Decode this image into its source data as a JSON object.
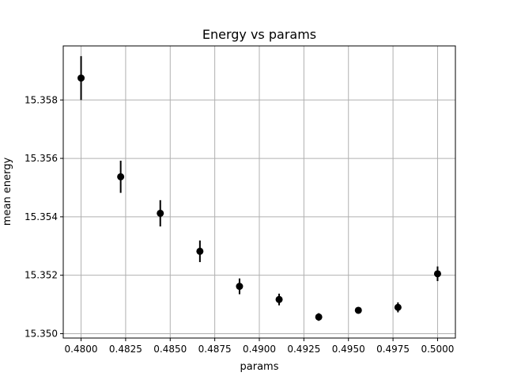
{
  "chart_data": {
    "type": "scatter",
    "title": "Energy vs params",
    "xlabel": "params",
    "ylabel": "mean energy",
    "xlim": [
      0.479,
      0.501
    ],
    "ylim": [
      15.34985,
      15.35985
    ],
    "xticks": [
      0.48,
      0.4825,
      0.485,
      0.4875,
      0.49,
      0.4925,
      0.495,
      0.4975,
      0.5
    ],
    "xtick_labels": [
      "0.4800",
      "0.4825",
      "0.4850",
      "0.4875",
      "0.4900",
      "0.4925",
      "0.4950",
      "0.4975",
      "0.5000"
    ],
    "yticks": [
      15.35,
      15.352,
      15.354,
      15.356,
      15.358
    ],
    "ytick_labels": [
      "15.350",
      "15.352",
      "15.354",
      "15.356",
      "15.358"
    ],
    "grid": true,
    "marker_color": "#000000",
    "grid_color": "#b0b0b0",
    "series": [
      {
        "x": [
          0.48,
          0.482222,
          0.484444,
          0.486667,
          0.488889,
          0.491111,
          0.493333,
          0.495556,
          0.497778,
          0.5
        ],
        "y": [
          15.35875,
          15.35537,
          15.35412,
          15.35282,
          15.35162,
          15.35117,
          15.35057,
          15.3508,
          15.3509,
          15.35205
        ],
        "yerr": [
          0.00075,
          0.00055,
          0.00045,
          0.00037,
          0.00027,
          0.0002,
          0.00013,
          0.0001,
          0.00017,
          0.00025
        ]
      }
    ]
  }
}
